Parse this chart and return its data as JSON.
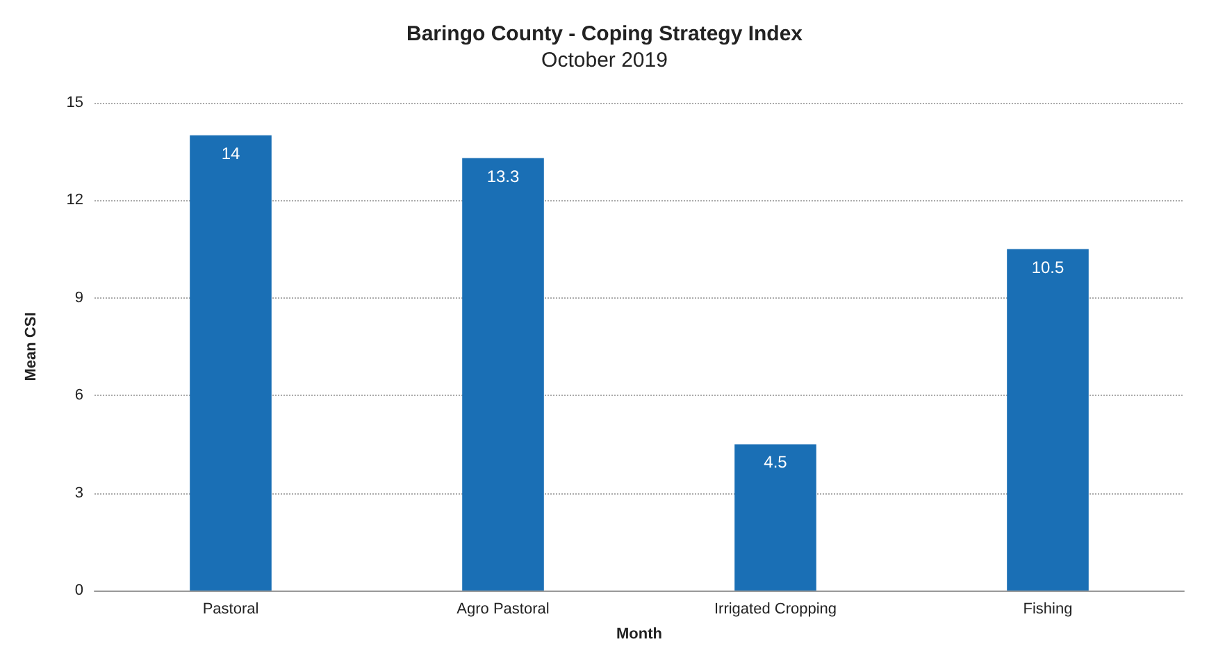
{
  "chart_data": {
    "type": "bar",
    "title": "Baringo County - Coping Strategy Index",
    "subtitle": "October 2019",
    "xlabel": "Month",
    "ylabel": "Mean CSI",
    "categories": [
      "Pastoral",
      "Agro Pastoral",
      "Irrigated Cropping",
      "Fishing"
    ],
    "values": [
      14,
      13.3,
      4.5,
      10.5
    ],
    "color": "#1a6fb5",
    "ylim": [
      0,
      15
    ],
    "yticks": [
      0,
      3,
      6,
      9,
      12,
      15
    ],
    "grid": "y",
    "data_labels": true
  }
}
